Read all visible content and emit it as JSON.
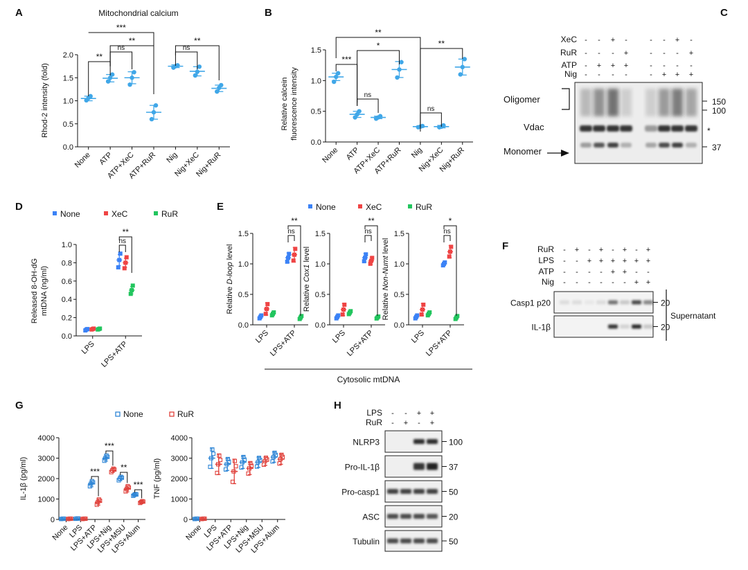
{
  "colors": {
    "none": "#3b82f6",
    "xec": "#ef4444",
    "rur": "#22c55e",
    "g_none": "#2f86d6",
    "g_rur": "#e0413b",
    "ab": "#40a7e8",
    "gel": "#202020"
  },
  "panels": {
    "A": {
      "letter": "A",
      "title": "Mitochondrial calcium",
      "ylabel": "Rhod-2 intensity (fold)",
      "ylim": [
        0,
        2.0
      ],
      "yticks": [
        "0.0",
        "0.5",
        "1.0",
        "1.5",
        "2.0"
      ],
      "categories": [
        "None",
        "ATP",
        "ATP+XeC",
        "ATP+RuR",
        "Nig",
        "Nig+XeC",
        "Nig+RuR"
      ],
      "points": [
        [
          1.01,
          1.06,
          1.1
        ],
        [
          1.42,
          1.5,
          1.57
        ],
        [
          1.35,
          1.5,
          1.62
        ],
        [
          0.6,
          0.75,
          0.9
        ],
        [
          1.72,
          1.75,
          1.77
        ],
        [
          1.55,
          1.63,
          1.74
        ],
        [
          1.2,
          1.28,
          1.34
        ]
      ],
      "means": [
        1.05,
        1.49,
        1.5,
        0.75,
        1.75,
        1.64,
        1.27
      ],
      "sd": [
        0.05,
        0.08,
        0.13,
        0.15,
        0.03,
        0.1,
        0.07
      ],
      "sig": [
        {
          "a": 0,
          "b": 3,
          "label": "***"
        },
        {
          "a": 0,
          "b": 1,
          "label": "**"
        },
        {
          "a": 1,
          "b": 2,
          "label": "ns"
        },
        {
          "a": 1,
          "b": 3,
          "label": "**"
        },
        {
          "a": 4,
          "b": 5,
          "label": "ns"
        },
        {
          "a": 4,
          "b": 6,
          "label": "**"
        }
      ]
    },
    "B": {
      "letter": "B",
      "ylabel": "Relative calcein\nfluorescence intensity",
      "ylim": [
        0,
        1.5
      ],
      "yticks": [
        "0.0",
        "0.5",
        "1.0",
        "1.5"
      ],
      "categories": [
        "None",
        "ATP",
        "ATP+XeC",
        "ATP+RuR",
        "Nig",
        "Nig+XeC",
        "Nig+RuR"
      ],
      "points": [
        [
          0.98,
          1.06,
          1.12
        ],
        [
          0.4,
          0.45,
          0.5
        ],
        [
          0.38,
          0.4,
          0.42
        ],
        [
          1.05,
          1.18,
          1.3
        ],
        [
          0.24,
          0.25,
          0.26
        ],
        [
          0.24,
          0.25,
          0.27
        ],
        [
          1.1,
          1.22,
          1.35
        ]
      ],
      "means": [
        1.06,
        0.45,
        0.4,
        1.18,
        0.25,
        0.25,
        1.22
      ],
      "sd": [
        0.06,
        0.05,
        0.02,
        0.13,
        0.01,
        0.02,
        0.13
      ],
      "sig": [
        {
          "a": 0,
          "b": 4,
          "label": "**"
        },
        {
          "a": 0,
          "b": 1,
          "label": "***"
        },
        {
          "a": 1,
          "b": 3,
          "label": "*"
        },
        {
          "a": 1,
          "b": 2,
          "label": "ns"
        },
        {
          "a": 4,
          "b": 6,
          "label": "**"
        },
        {
          "a": 4,
          "b": 5,
          "label": "ns"
        }
      ]
    },
    "C": {
      "letter": "C",
      "treat_rows": [
        {
          "label": "XeC",
          "signs": [
            "-",
            "-",
            "+",
            "-",
            "-",
            "-",
            "+",
            "-"
          ]
        },
        {
          "label": "RuR",
          "signs": [
            "-",
            "-",
            "-",
            "+",
            "-",
            "-",
            "-",
            "+"
          ]
        },
        {
          "label": "ATP",
          "signs": [
            "-",
            "+",
            "+",
            "+",
            "-",
            "-",
            "-",
            "-"
          ]
        },
        {
          "label": "Nig",
          "signs": [
            "-",
            "-",
            "-",
            "-",
            "-",
            "+",
            "+",
            "+"
          ]
        }
      ],
      "labels_left": [
        "Oligomer",
        "Vdac",
        "Monomer"
      ],
      "mw": [
        "150",
        "100",
        "37"
      ],
      "star": "*"
    },
    "D": {
      "letter": "D",
      "ylabel": "Released 8-OH-dG\nmtDNA (ng/ml)",
      "ylim": [
        0,
        1.0
      ],
      "yticks": [
        "0.0",
        "0.2",
        "0.4",
        "0.6",
        "0.8",
        "1.0"
      ],
      "categories": [
        "LPS",
        "LPS+ATP"
      ],
      "legend": [
        "None",
        "XeC",
        "RuR"
      ],
      "groups": [
        [
          {
            "pts": [
              0.06,
              0.07,
              0.075
            ],
            "mean": 0.07,
            "sd": 0.01
          },
          {
            "pts": [
              0.07,
              0.075,
              0.08
            ],
            "mean": 0.075,
            "sd": 0.01
          },
          {
            "pts": [
              0.07,
              0.075,
              0.08
            ],
            "mean": 0.075,
            "sd": 0.01
          }
        ],
        [
          {
            "pts": [
              0.75,
              0.83,
              0.9
            ],
            "mean": 0.83,
            "sd": 0.06
          },
          {
            "pts": [
              0.74,
              0.8,
              0.86
            ],
            "mean": 0.8,
            "sd": 0.05
          },
          {
            "pts": [
              0.46,
              0.5,
              0.55
            ],
            "mean": 0.5,
            "sd": 0.04
          }
        ]
      ],
      "sig": [
        {
          "a": 0,
          "b": 1,
          "label": "ns"
        },
        {
          "a": 0,
          "b": 2,
          "label": "**"
        }
      ]
    },
    "E": {
      "letter": "E",
      "legend": [
        "None",
        "XeC",
        "RuR"
      ],
      "ylim": [
        0,
        1.5
      ],
      "yticks": [
        "0.0",
        "0.5",
        "1.0",
        "1.5"
      ],
      "categories": [
        "LPS",
        "LPS+ATP"
      ],
      "footer": "Cytosolic mtDNA",
      "subplots": [
        {
          "ylabel_pre": "Relative ",
          "ylabel_italic": "D-loop",
          "ylabel_post": " level",
          "groups": [
            [
              {
                "m": 0.13,
                "s": 0.03
              },
              {
                "m": 0.26,
                "s": 0.1
              },
              {
                "m": 0.18,
                "s": 0.03
              }
            ],
            [
              {
                "m": 1.1,
                "s": 0.08
              },
              {
                "m": 1.15,
                "s": 0.12
              },
              {
                "m": 0.12,
                "s": 0.03
              }
            ]
          ],
          "sig": [
            {
              "a": 0,
              "b": 1,
              "label": "ns"
            },
            {
              "a": 0,
              "b": 2,
              "label": "**"
            }
          ]
        },
        {
          "ylabel_pre": "Relative ",
          "ylabel_italic": "Cox1",
          "ylabel_post": " level",
          "groups": [
            [
              {
                "m": 0.13,
                "s": 0.03
              },
              {
                "m": 0.25,
                "s": 0.1
              },
              {
                "m": 0.2,
                "s": 0.03
              }
            ],
            [
              {
                "m": 1.1,
                "s": 0.07
              },
              {
                "m": 1.05,
                "s": 0.06
              },
              {
                "m": 0.12,
                "s": 0.02
              }
            ]
          ],
          "sig": [
            {
              "a": 0,
              "b": 1,
              "label": "ns"
            },
            {
              "a": 0,
              "b": 2,
              "label": "**"
            }
          ]
        },
        {
          "ylabel_pre": "Relative ",
          "ylabel_italic": "Non-Numt",
          "ylabel_post": " level",
          "groups": [
            [
              {
                "m": 0.13,
                "s": 0.03
              },
              {
                "m": 0.25,
                "s": 0.1
              },
              {
                "m": 0.18,
                "s": 0.03
              }
            ],
            [
              {
                "m": 1.0,
                "s": 0.03
              },
              {
                "m": 1.2,
                "s": 0.1
              },
              {
                "m": 0.12,
                "s": 0.03
              }
            ]
          ],
          "sig": [
            {
              "a": 0,
              "b": 1,
              "label": "ns"
            },
            {
              "a": 0,
              "b": 2,
              "label": "*"
            }
          ]
        }
      ]
    },
    "F": {
      "letter": "F",
      "treat_rows": [
        {
          "label": "RuR",
          "signs": [
            "-",
            "+",
            "-",
            "+",
            "-",
            "+",
            "-",
            "+"
          ]
        },
        {
          "label": "LPS",
          "signs": [
            "-",
            "-",
            "+",
            "+",
            "+",
            "+",
            "+",
            "+"
          ]
        },
        {
          "label": "ATP",
          "signs": [
            "-",
            "-",
            "-",
            "-",
            "+",
            "+",
            "-",
            "-"
          ]
        },
        {
          "label": "Nig",
          "signs": [
            "-",
            "-",
            "-",
            "-",
            "-",
            "-",
            "+",
            "+"
          ]
        }
      ],
      "blots": [
        "Casp1 p20",
        "IL-1β"
      ],
      "mw": [
        "20",
        "20"
      ],
      "side": "Supernatant"
    },
    "G": {
      "letter": "G",
      "legend": [
        "None",
        "RuR"
      ],
      "categories": [
        "None",
        "LPS",
        "LPS+ATP",
        "LPS+Nig",
        "LPS+MSU",
        "LPS+Alum"
      ],
      "left": {
        "ylabel": "IL-1β (pg/ml)",
        "ylim": [
          0,
          4000
        ],
        "yticks": [
          "0",
          "1000",
          "2000",
          "3000",
          "4000"
        ],
        "none": [
          {
            "m": 30,
            "s": 10
          },
          {
            "m": 40,
            "s": 10
          },
          {
            "m": 1750,
            "s": 150
          },
          {
            "m": 3000,
            "s": 150
          },
          {
            "m": 2000,
            "s": 100
          },
          {
            "m": 1200,
            "s": 50
          }
        ],
        "rur": [
          {
            "m": 30,
            "s": 10
          },
          {
            "m": 30,
            "s": 10
          },
          {
            "m": 850,
            "s": 150
          },
          {
            "m": 2400,
            "s": 100
          },
          {
            "m": 1500,
            "s": 150
          },
          {
            "m": 850,
            "s": 50
          }
        ],
        "sig": [
          {
            "i": 2,
            "label": "***"
          },
          {
            "i": 3,
            "label": "***"
          },
          {
            "i": 4,
            "label": "**"
          },
          {
            "i": 5,
            "label": "***"
          }
        ]
      },
      "right": {
        "ylabel": "TNF (pg/ml)",
        "ylim": [
          0,
          4000
        ],
        "yticks": [
          "0",
          "1000",
          "2000",
          "3000",
          "4000"
        ],
        "none": [
          {
            "m": 30,
            "s": 10
          },
          {
            "m": 3000,
            "s": 500
          },
          {
            "m": 2700,
            "s": 300
          },
          {
            "m": 2800,
            "s": 300
          },
          {
            "m": 2800,
            "s": 250
          },
          {
            "m": 3050,
            "s": 250
          }
        ],
        "rur": [
          {
            "m": 30,
            "s": 10
          },
          {
            "m": 2700,
            "s": 500
          },
          {
            "m": 2350,
            "s": 600
          },
          {
            "m": 2500,
            "s": 300
          },
          {
            "m": 2850,
            "s": 200
          },
          {
            "m": 2950,
            "s": 250
          }
        ]
      }
    },
    "H": {
      "letter": "H",
      "treat_rows": [
        {
          "label": "LPS",
          "signs": [
            "-",
            "-",
            "+",
            "+"
          ]
        },
        {
          "label": "RuR",
          "signs": [
            "-",
            "+",
            "-",
            "+"
          ]
        }
      ],
      "blots": [
        "NLRP3",
        "Pro-IL-1β",
        "Pro-casp1",
        "ASC",
        "Tubulin"
      ],
      "mw": [
        "100",
        "37",
        "50",
        "20",
        "50"
      ]
    }
  }
}
